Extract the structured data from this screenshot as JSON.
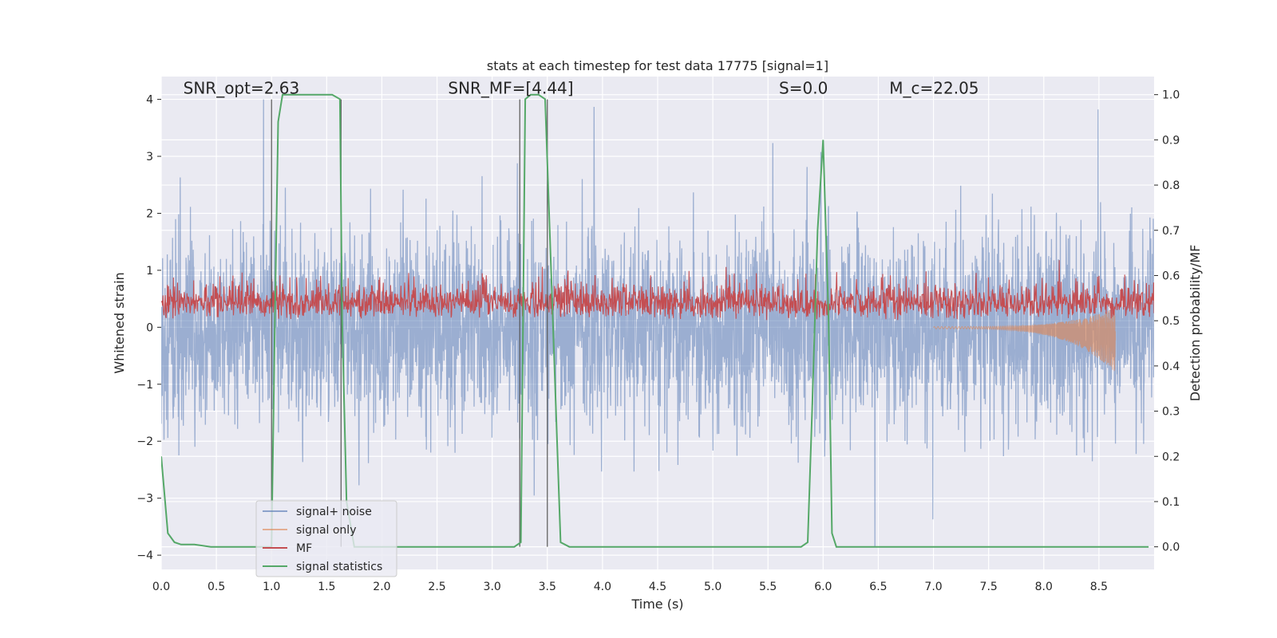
{
  "chart_data": {
    "type": "line",
    "title": "stats at each timestep for test data 17775 [signal=1]",
    "xlabel": "Time (s)",
    "ylabel": "Whitened strain",
    "y2label": "Detection probability/MF",
    "xlim": [
      0,
      9
    ],
    "ylim": [
      -4.25,
      4.4
    ],
    "y2lim": [
      -0.05,
      1.04
    ],
    "xticks": [
      0.0,
      0.5,
      1.0,
      1.5,
      2.0,
      2.5,
      3.0,
      3.5,
      4.0,
      4.5,
      5.0,
      5.5,
      6.0,
      6.5,
      7.0,
      7.5,
      8.0,
      8.5
    ],
    "xtick_labels": [
      "0.0",
      "0.5",
      "1.0",
      "1.5",
      "2.0",
      "2.5",
      "3.0",
      "3.5",
      "4.0",
      "4.5",
      "5.0",
      "5.5",
      "6.0",
      "6.5",
      "7.0",
      "7.5",
      "8.0",
      "8.5"
    ],
    "yticks": [
      4,
      3,
      2,
      1,
      0,
      -1,
      -2,
      -3,
      -4
    ],
    "ytick_labels": [
      "4",
      "3",
      "2",
      "1",
      "0",
      "−1",
      "−2",
      "−3",
      "−4"
    ],
    "y2ticks": [
      1.0,
      0.9,
      0.8,
      0.7,
      0.6,
      0.5,
      0.4,
      0.3,
      0.2,
      0.1,
      0.0
    ],
    "y2tick_labels": [
      "1.0",
      "0.9",
      "0.8",
      "0.7",
      "0.6",
      "0.5",
      "0.4",
      "0.3",
      "0.2",
      "0.1",
      "0.0"
    ],
    "grid": true,
    "legend_position": "lower-left",
    "annotations": [
      {
        "text": "SNR_opt=2.63",
        "x": 0.2,
        "y": 4.1
      },
      {
        "text": "SNR_MF=[4.44]",
        "x": 2.6,
        "y": 4.1
      },
      {
        "text": "S=0.0",
        "x": 5.6,
        "y": 4.1
      },
      {
        "text": "M_c=22.05",
        "x": 6.6,
        "y": 4.1
      }
    ],
    "series": [
      {
        "name": "signal+ noise",
        "color": "#4c72b0",
        "kind": "noise",
        "axis": "left",
        "std": 0.95,
        "max": 4.0,
        "min": -3.85
      },
      {
        "name": "signal only",
        "color": "#dd8452",
        "kind": "chirp",
        "axis": "left",
        "t_start": 7.0,
        "t_end": 8.65,
        "peak": -0.55
      },
      {
        "name": "MF",
        "color": "#c44e52",
        "kind": "mf",
        "axis": "right",
        "baseline": 0.52,
        "spread": 0.03
      },
      {
        "name": "signal statistics",
        "color": "#55a868",
        "kind": "line",
        "axis": "right",
        "x": [
          0.0,
          0.06,
          0.12,
          0.18,
          0.3,
          0.45,
          0.6,
          0.95,
          1.0,
          1.03,
          1.06,
          1.1,
          1.2,
          1.4,
          1.55,
          1.62,
          1.64,
          1.68,
          1.75,
          3.2,
          3.26,
          3.3,
          3.35,
          3.42,
          3.48,
          3.55,
          3.62,
          3.7,
          5.8,
          5.86,
          5.9,
          5.95,
          6.0,
          6.05,
          6.08,
          6.12,
          6.2,
          8.95
        ],
        "y": [
          0.2,
          0.03,
          0.01,
          0.005,
          0.005,
          0.0,
          0.0,
          0.0,
          0.0,
          0.5,
          0.94,
          1.0,
          1.0,
          1.0,
          1.0,
          0.99,
          0.5,
          0.1,
          0.0,
          0.0,
          0.01,
          0.99,
          1.0,
          1.0,
          0.99,
          0.5,
          0.01,
          0.0,
          0.0,
          0.01,
          0.3,
          0.7,
          0.9,
          0.5,
          0.03,
          0.0,
          0.0,
          0.0
        ]
      }
    ],
    "vlines": [
      1.0,
      1.63,
      3.25,
      3.5
    ]
  }
}
